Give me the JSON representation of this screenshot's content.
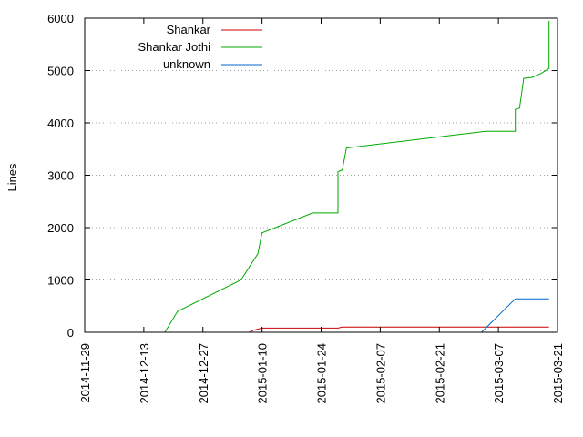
{
  "chart_data": {
    "type": "line",
    "title": "",
    "xlabel": "",
    "ylabel": "Lines",
    "ylim": [
      0,
      6000
    ],
    "xlim": [
      "2014-11-29",
      "2015-03-21"
    ],
    "x_tick_labels": [
      "2014-11-29",
      "2014-12-13",
      "2014-12-27",
      "2015-01-10",
      "2015-01-24",
      "2015-02-07",
      "2015-02-21",
      "2015-03-07",
      "2015-03-21"
    ],
    "y_ticks": [
      0,
      1000,
      2000,
      3000,
      4000,
      5000,
      6000
    ],
    "grid": "horizontal dotted",
    "legend": "top-left",
    "series": [
      {
        "name": "Shankar",
        "color": "#cc0000",
        "points": [
          [
            "2014-12-09",
            0
          ],
          [
            "2015-01-07",
            0
          ],
          [
            "2015-01-08",
            40
          ],
          [
            "2015-01-10",
            80
          ],
          [
            "2015-01-28",
            80
          ],
          [
            "2015-01-29",
            100
          ],
          [
            "2015-03-19",
            100
          ]
        ]
      },
      {
        "name": "Shankar Jothi",
        "color": "#00aa00",
        "points": [
          [
            "2014-12-09",
            0
          ],
          [
            "2014-12-18",
            0
          ],
          [
            "2014-12-21",
            400
          ],
          [
            "2015-01-05",
            1000
          ],
          [
            "2015-01-09",
            1500
          ],
          [
            "2015-01-10",
            1900
          ],
          [
            "2015-01-22",
            2280
          ],
          [
            "2015-01-28",
            2280
          ],
          [
            "2015-01-28",
            3070
          ],
          [
            "2015-01-29",
            3100
          ],
          [
            "2015-01-30",
            3520
          ],
          [
            "2015-03-04",
            3840
          ],
          [
            "2015-03-11",
            3840
          ],
          [
            "2015-03-11",
            4260
          ],
          [
            "2015-03-12",
            4280
          ],
          [
            "2015-03-13",
            4850
          ],
          [
            "2015-03-15",
            4870
          ],
          [
            "2015-03-17",
            4940
          ],
          [
            "2015-03-19",
            5040
          ],
          [
            "2015-03-19",
            5950
          ]
        ]
      },
      {
        "name": "unknown",
        "color": "#0066cc",
        "points": [
          [
            "2015-03-03",
            0
          ],
          [
            "2015-03-11",
            640
          ],
          [
            "2015-03-19",
            640
          ]
        ]
      }
    ]
  }
}
